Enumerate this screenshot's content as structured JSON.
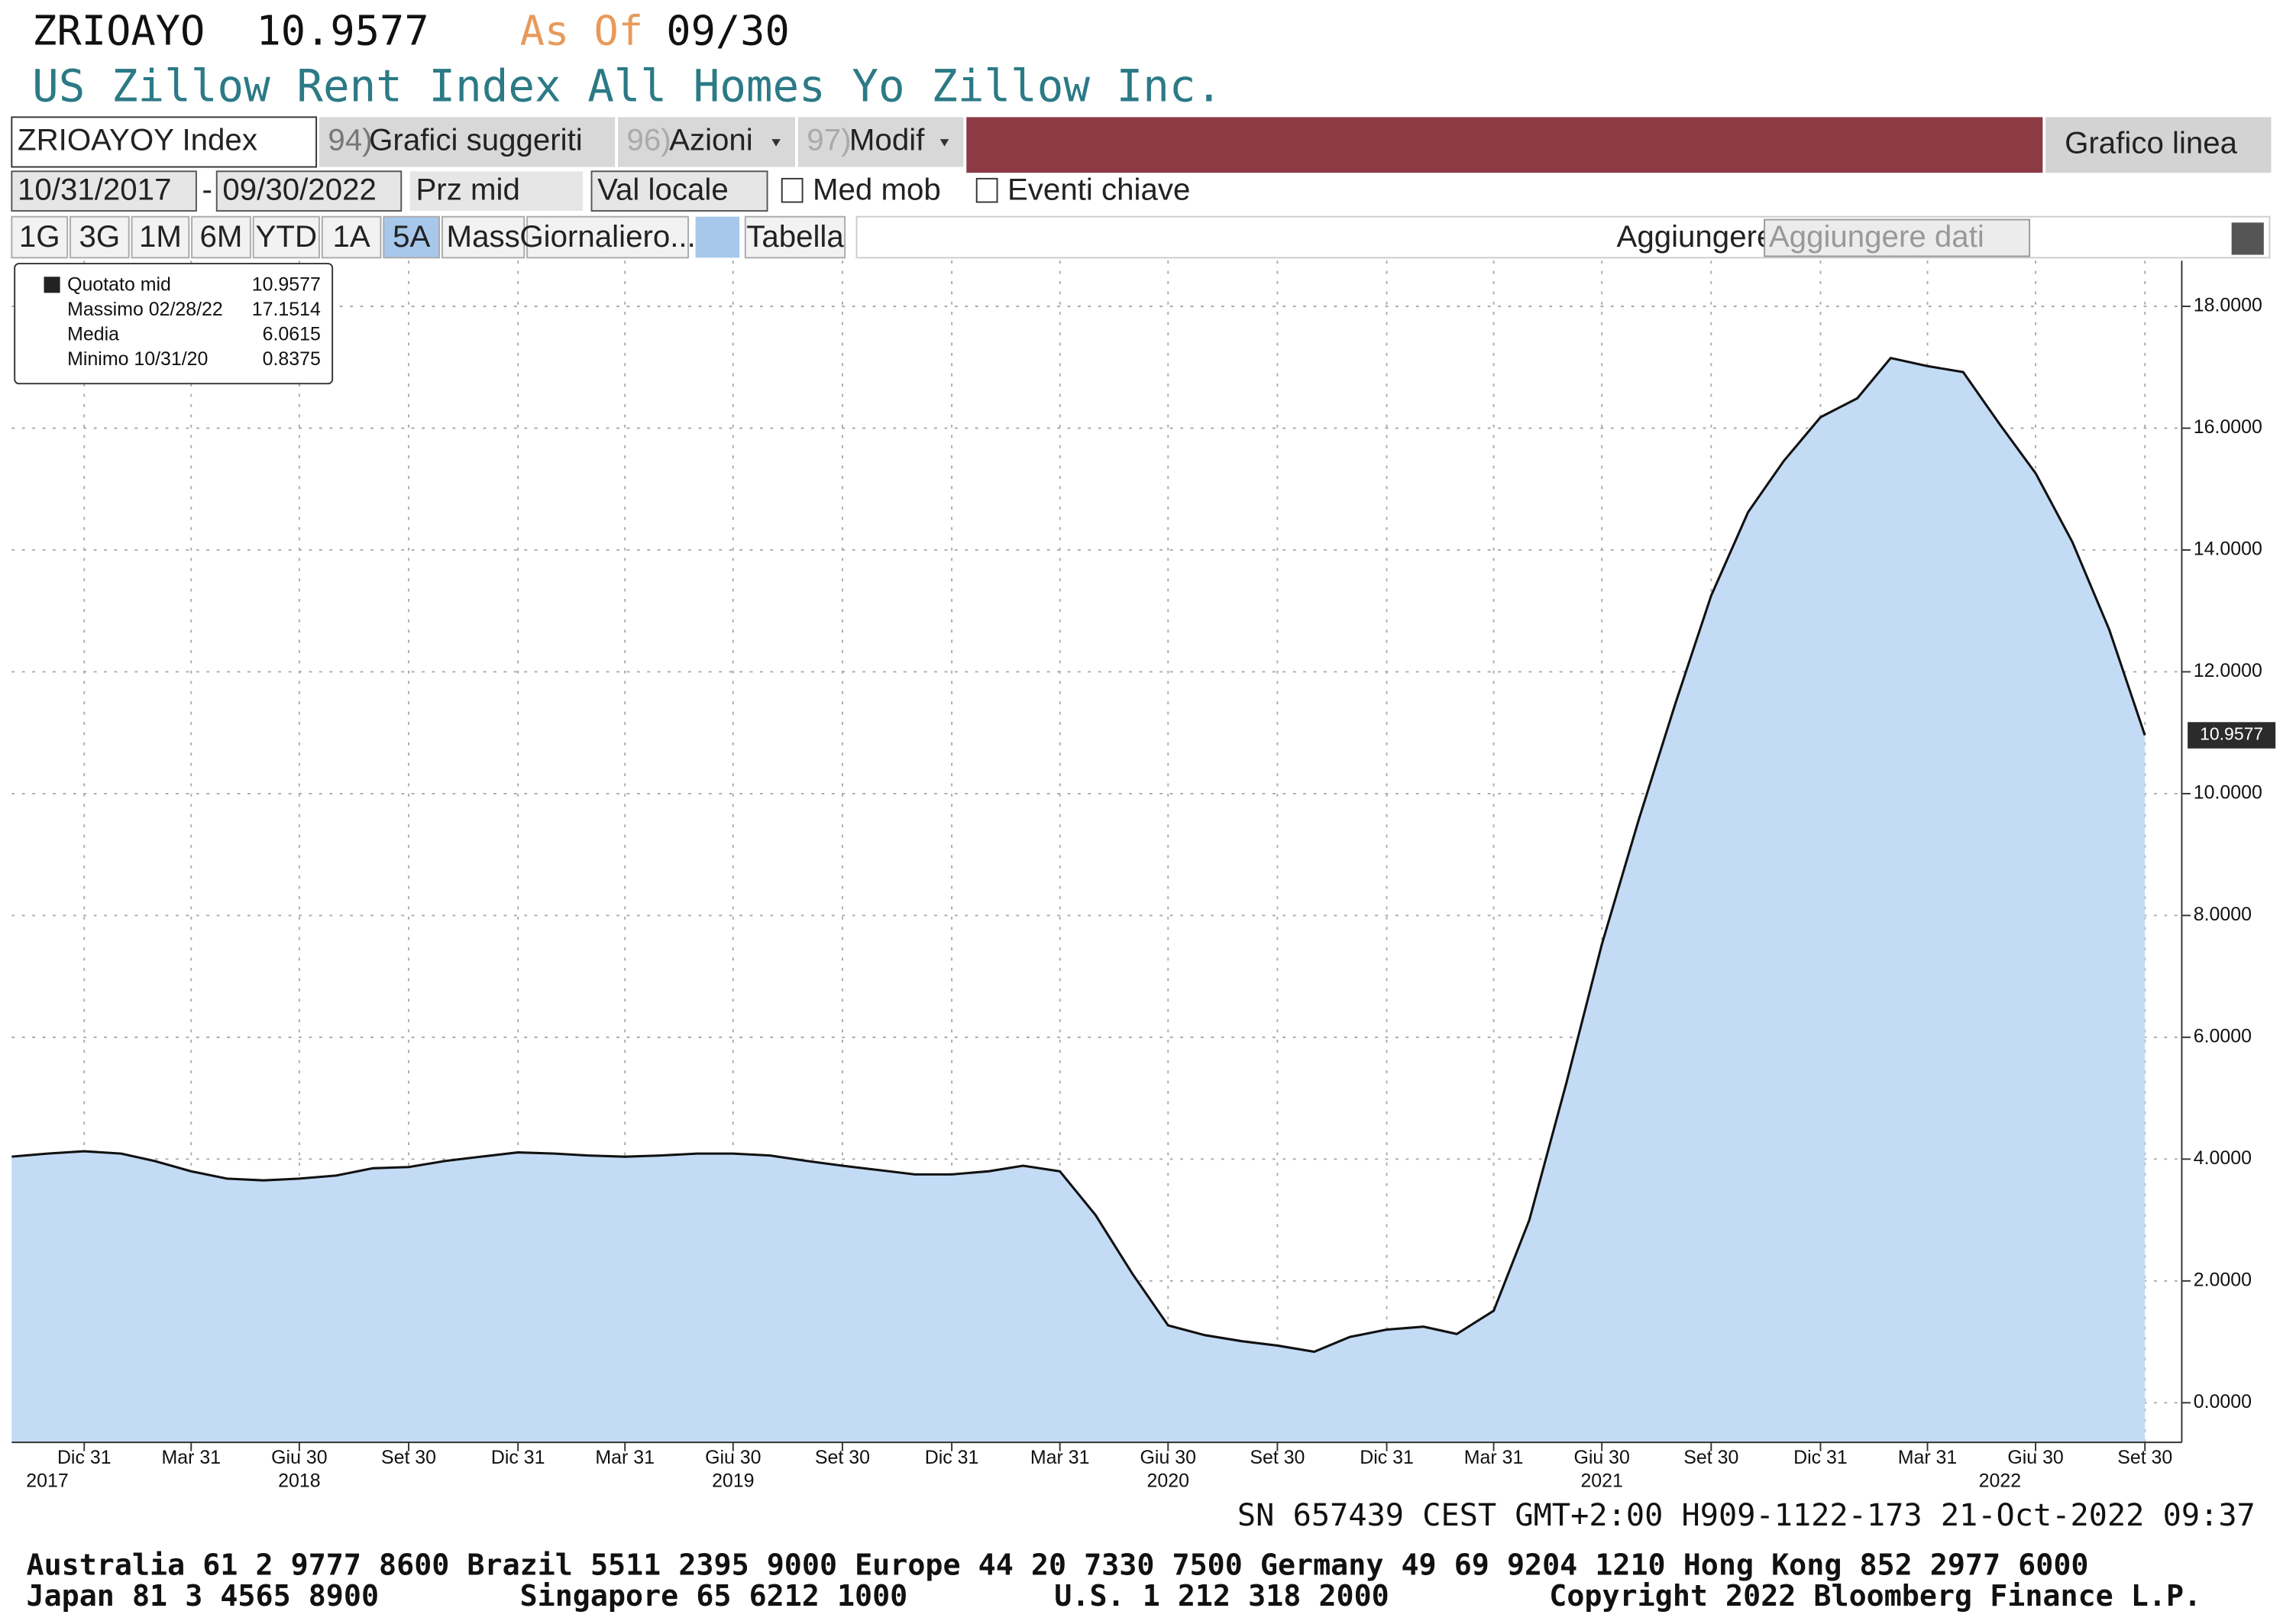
{
  "header": {
    "ticker": "ZRIOAYO",
    "price": "10.9577",
    "as_of": "As Of",
    "date": "09/30",
    "subtitle": "US Zillow Rent Index All Homes Yo Zillow Inc."
  },
  "toolbar": {
    "security": "ZRIOAYOY Index",
    "b1_num": "94)",
    "b1": "Grafici suggeriti",
    "b2_num": "96)",
    "b2": "Azioni",
    "b3_num": "97)",
    "b3": "Modif",
    "chart_type": "Grafico linea"
  },
  "controls": {
    "start": "10/31/2017",
    "dash": "-",
    "end": "09/30/2022",
    "field": "Prz mid",
    "currency": "Val locale",
    "mov_avg": "Med mob",
    "events": "Eventi chiave"
  },
  "ranges": [
    "1G",
    "3G",
    "1M",
    "6M",
    "YTD",
    "1A",
    "5A",
    "Mass",
    "Giornaliero...",
    "Tabella"
  ],
  "add": {
    "label": "Aggiungere",
    "input": "Aggiungere dati"
  },
  "legend": [
    {
      "name": "Quotato mid",
      "value": "10.9577"
    },
    {
      "name": "Massimo 02/28/22",
      "value": "17.1514"
    },
    {
      "name": "Media",
      "value": "6.0615"
    },
    {
      "name": "Minimo 10/31/20",
      "value": "0.8375"
    }
  ],
  "chart_data": {
    "type": "area",
    "color": "#c3dbf5",
    "line_color": "#111111",
    "grid": true,
    "last_price_label": "10.9577",
    "x": [
      "2017-10-31",
      "2017-11-30",
      "2017-12-31",
      "2018-01-31",
      "2018-02-28",
      "2018-03-31",
      "2018-04-30",
      "2018-05-31",
      "2018-06-30",
      "2018-07-31",
      "2018-08-31",
      "2018-09-30",
      "2018-10-31",
      "2018-11-30",
      "2018-12-31",
      "2019-01-31",
      "2019-02-28",
      "2019-03-31",
      "2019-04-30",
      "2019-05-31",
      "2019-06-30",
      "2019-07-31",
      "2019-08-31",
      "2019-09-30",
      "2019-10-31",
      "2019-11-30",
      "2019-12-31",
      "2020-01-31",
      "2020-02-29",
      "2020-03-31",
      "2020-04-30",
      "2020-05-31",
      "2020-06-30",
      "2020-07-31",
      "2020-08-31",
      "2020-09-30",
      "2020-10-31",
      "2020-11-30",
      "2020-12-31",
      "2021-01-31",
      "2021-02-28",
      "2021-03-31",
      "2021-04-30",
      "2021-05-31",
      "2021-06-30",
      "2021-07-31",
      "2021-08-31",
      "2021-09-30",
      "2021-10-31",
      "2021-11-30",
      "2021-12-31",
      "2022-01-31",
      "2022-02-28",
      "2022-03-31",
      "2022-04-30",
      "2022-05-31",
      "2022-06-30",
      "2022-07-31",
      "2022-08-31",
      "2022-09-30"
    ],
    "values": [
      4.04,
      4.09,
      4.13,
      4.09,
      3.97,
      3.8,
      3.68,
      3.65,
      3.68,
      3.73,
      3.85,
      3.87,
      3.97,
      4.04,
      4.11,
      4.09,
      4.06,
      4.04,
      4.06,
      4.09,
      4.09,
      4.06,
      3.97,
      3.89,
      3.82,
      3.75,
      3.75,
      3.8,
      3.89,
      3.8,
      3.08,
      2.12,
      1.27,
      1.11,
      1.01,
      0.94,
      0.8375,
      1.08,
      1.2,
      1.25,
      1.13,
      1.51,
      3.0,
      5.24,
      7.52,
      9.57,
      11.49,
      13.25,
      14.62,
      15.46,
      16.18,
      16.49,
      17.1514,
      17.02,
      16.92,
      16.06,
      15.26,
      14.13,
      12.69,
      10.9577
    ],
    "xlim": [
      "2017-10-31",
      "2022-10-31"
    ],
    "xticks": [
      {
        "value": "2017-12-31",
        "label": "Dic 31"
      },
      {
        "value": "2018-03-31",
        "label": "Mar 31"
      },
      {
        "value": "2018-06-30",
        "label": "Giu 30"
      },
      {
        "value": "2018-09-30",
        "label": "Set 30"
      },
      {
        "value": "2018-12-31",
        "label": "Dic 31"
      },
      {
        "value": "2019-03-31",
        "label": "Mar 31"
      },
      {
        "value": "2019-06-30",
        "label": "Giu 30"
      },
      {
        "value": "2019-09-30",
        "label": "Set 30"
      },
      {
        "value": "2019-12-31",
        "label": "Dic 31"
      },
      {
        "value": "2020-03-31",
        "label": "Mar 31"
      },
      {
        "value": "2020-06-30",
        "label": "Giu 30"
      },
      {
        "value": "2020-09-30",
        "label": "Set 30"
      },
      {
        "value": "2020-12-31",
        "label": "Dic 31"
      },
      {
        "value": "2021-03-31",
        "label": "Mar 31"
      },
      {
        "value": "2021-06-30",
        "label": "Giu 30"
      },
      {
        "value": "2021-09-30",
        "label": "Set 30"
      },
      {
        "value": "2021-12-31",
        "label": "Dic 31"
      },
      {
        "value": "2022-03-31",
        "label": "Mar 31"
      },
      {
        "value": "2022-06-30",
        "label": "Giu 30"
      },
      {
        "value": "2022-09-30",
        "label": "Set 30"
      }
    ],
    "year_labels": [
      {
        "value": "2017-11-30",
        "label": "2017"
      },
      {
        "value": "2018-06-30",
        "label": "2018"
      },
      {
        "value": "2019-06-30",
        "label": "2019"
      },
      {
        "value": "2020-06-30",
        "label": "2020"
      },
      {
        "value": "2021-06-30",
        "label": "2021"
      },
      {
        "value": "2022-05-31",
        "label": "2022"
      }
    ],
    "ylim": [
      -0.65,
      18.75
    ],
    "yticks": [
      {
        "value": 0,
        "label": "0.0000"
      },
      {
        "value": 2,
        "label": "2.0000"
      },
      {
        "value": 4,
        "label": "4.0000"
      },
      {
        "value": 6,
        "label": "6.0000"
      },
      {
        "value": 8,
        "label": "8.0000"
      },
      {
        "value": 10,
        "label": "10.0000"
      },
      {
        "value": 12,
        "label": "12.0000"
      },
      {
        "value": 14,
        "label": "14.0000"
      },
      {
        "value": 16,
        "label": "16.0000"
      },
      {
        "value": 18,
        "label": "18.0000"
      }
    ]
  },
  "footer": {
    "session": "SN 657439 CEST GMT+2:00 H909-1122-173 21-Oct-2022 09:37",
    "contacts1": "Australia 61 2 9777 8600 Brazil 5511 2395 9000 Europe 44 20 7330 7500 Germany 49 69 9204 1210 Hong Kong 852 2977 6000",
    "contacts2a": "Japan 81 3 4565 8900",
    "contacts2b": "Singapore 65 6212 1000",
    "contacts2c": "U.S. 1 212 318 2000",
    "contacts2d": "Copyright 2022 Bloomberg Finance L.P."
  }
}
